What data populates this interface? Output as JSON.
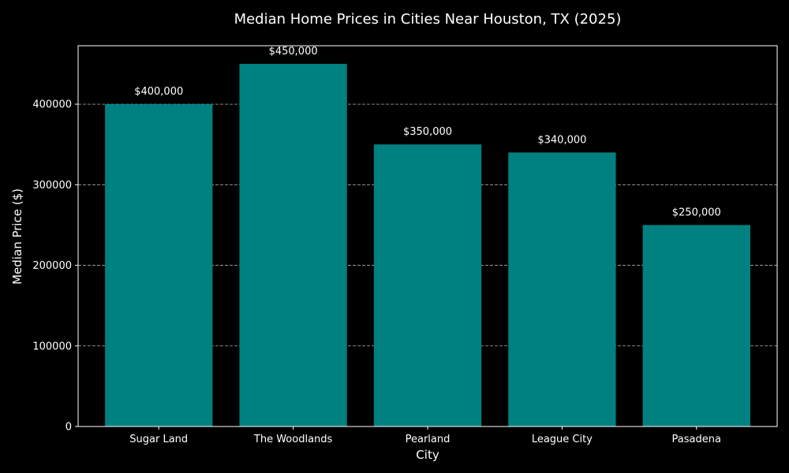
{
  "chart_data": {
    "type": "bar",
    "title": "Median Home Prices in Cities Near Houston, TX (2025)",
    "xlabel": "City",
    "ylabel": "Median Price ($)",
    "categories": [
      "Sugar Land",
      "The Woodlands",
      "Pearland",
      "League City",
      "Pasadena"
    ],
    "values": [
      400000,
      450000,
      350000,
      340000,
      250000
    ],
    "data_labels": [
      "$400,000",
      "$450,000",
      "$350,000",
      "$340,000",
      "$250,000"
    ],
    "yticks": [
      0,
      100000,
      200000,
      300000,
      400000
    ],
    "ytick_labels": [
      "0",
      "100000",
      "200000",
      "300000",
      "400000"
    ],
    "ylim": [
      0,
      472500
    ],
    "grid": true,
    "bar_color": "#008080",
    "background_color": "#000000",
    "text_color": "#ffffff"
  }
}
